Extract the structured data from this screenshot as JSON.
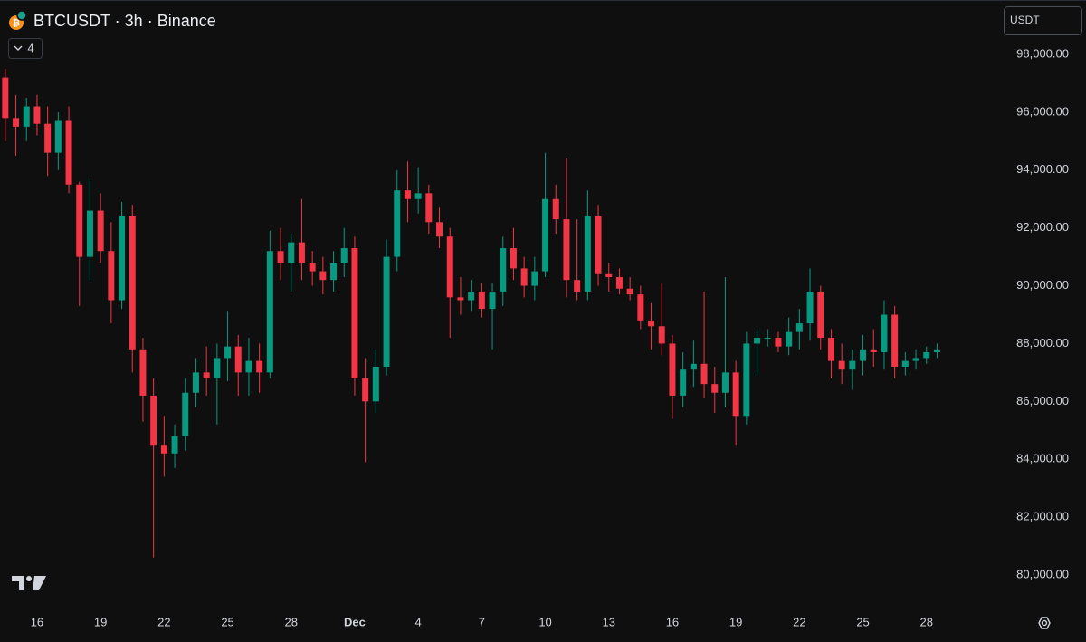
{
  "chart_data": {
    "type": "candlestick",
    "title": "BTCUSDT · 3h · Binance",
    "indicator_count": 4,
    "currency": "USDT",
    "up_color": "#089981",
    "down_color": "#f23645",
    "categories": [
      null,
      null,
      null,
      "16",
      null,
      null,
      null,
      null,
      null,
      "19",
      null,
      null,
      null,
      null,
      null,
      "22",
      null,
      null,
      null,
      null,
      null,
      "25",
      null,
      null,
      null,
      null,
      null,
      "28",
      null,
      null,
      null,
      null,
      null,
      "Dec",
      null,
      null,
      null,
      null,
      null,
      "4",
      null,
      null,
      null,
      null,
      null,
      "7",
      null,
      null,
      null,
      null,
      null,
      "10",
      null,
      null,
      null,
      null,
      null,
      "13",
      null,
      null,
      null,
      null,
      null,
      "16",
      null,
      null,
      null,
      null,
      null,
      "19",
      null,
      null,
      null,
      null,
      null,
      "22",
      null,
      null,
      null,
      null,
      null,
      "25",
      null,
      null,
      null,
      null,
      null,
      "28",
      null
    ],
    "open": [
      97200,
      95800,
      95500,
      96200,
      95600,
      94600,
      95700,
      93500,
      91000,
      92600,
      91200,
      89500,
      92400,
      87800,
      86200,
      84500,
      84200,
      84800,
      86300,
      87000,
      86800,
      87500,
      87900,
      87000,
      87400,
      87000,
      91200,
      90800,
      91500,
      90800,
      90500,
      90200,
      90800,
      91300,
      86800,
      86000,
      87200,
      91000,
      93300,
      93000,
      93200,
      92200,
      91700,
      89600,
      89500,
      89800,
      89200,
      89800,
      91300,
      90600,
      90000,
      90500,
      93000,
      92300,
      90200,
      89800,
      92400,
      90400,
      90300,
      89900,
      89700,
      88800,
      88600,
      88000,
      86200,
      87100,
      87300,
      86600,
      86300,
      87000,
      85500,
      88000,
      88200,
      88200,
      87900,
      88400,
      88700,
      89800,
      88200,
      87400,
      87100,
      87400,
      87800,
      87700,
      89000,
      87200,
      87400,
      87500,
      87700
    ],
    "high": [
      97500,
      96600,
      96500,
      96600,
      96200,
      96000,
      96200,
      93600,
      93700,
      93200,
      92200,
      92900,
      92800,
      88200,
      86800,
      85500,
      85200,
      86800,
      87500,
      87900,
      88000,
      89100,
      88300,
      88200,
      88000,
      91900,
      92000,
      91800,
      93000,
      91200,
      91000,
      91200,
      92000,
      91700,
      87500,
      87800,
      91600,
      94000,
      94300,
      94100,
      93500,
      92700,
      92000,
      90300,
      90200,
      90100,
      90100,
      91700,
      92000,
      91000,
      91000,
      94600,
      93500,
      94400,
      92300,
      93300,
      92800,
      90800,
      90600,
      90300,
      90000,
      89400,
      90100,
      88300,
      87700,
      88100,
      89800,
      87200,
      90300,
      87400,
      88400,
      88500,
      88500,
      88400,
      88900,
      89200,
      90600,
      90000,
      88500,
      88000,
      87800,
      88300,
      88500,
      89500,
      89300,
      87700,
      87800,
      87900,
      88000
    ],
    "low": [
      95000,
      94500,
      95000,
      95200,
      93800,
      94000,
      93200,
      89300,
      90200,
      90800,
      88700,
      89200,
      87000,
      85300,
      80600,
      83400,
      83700,
      84300,
      85800,
      86200,
      85200,
      86700,
      86200,
      86200,
      86300,
      86800,
      90200,
      89800,
      90200,
      90000,
      89700,
      89800,
      90300,
      86200,
      83900,
      85600,
      86900,
      90500,
      92200,
      92500,
      91800,
      91300,
      88200,
      89000,
      89100,
      88900,
      87800,
      89300,
      90200,
      89600,
      89500,
      90300,
      91800,
      89600,
      89500,
      89500,
      90000,
      89800,
      89700,
      89500,
      88500,
      87800,
      87600,
      85400,
      85800,
      86500,
      86100,
      85600,
      85800,
      84500,
      85200,
      86900,
      87900,
      87700,
      87600,
      87800,
      88100,
      87800,
      86800,
      86600,
      86400,
      86900,
      87200,
      87100,
      86800,
      86900,
      87100,
      87300,
      87500
    ],
    "close": [
      95800,
      95500,
      96200,
      95600,
      94600,
      95700,
      93500,
      91000,
      92600,
      91200,
      89500,
      92400,
      87800,
      86200,
      84500,
      84200,
      84800,
      86300,
      87000,
      86800,
      87500,
      87900,
      87000,
      87400,
      87000,
      91200,
      90800,
      91500,
      90800,
      90500,
      90200,
      90800,
      91300,
      86800,
      86000,
      87200,
      91000,
      93300,
      93000,
      93200,
      92200,
      91700,
      89600,
      89500,
      89800,
      89200,
      89800,
      91300,
      90600,
      90000,
      90500,
      93000,
      92300,
      90200,
      89800,
      92400,
      90400,
      90300,
      89900,
      89700,
      88800,
      88600,
      88000,
      86200,
      87100,
      87300,
      86600,
      86300,
      87000,
      85500,
      88000,
      88200,
      88200,
      87900,
      88400,
      88700,
      89800,
      88200,
      87400,
      87100,
      87400,
      87800,
      87700,
      89000,
      87200,
      87400,
      87500,
      87700,
      87800
    ],
    "ylim": [
      78840,
      99880
    ],
    "yticks": [
      {
        "value": 80000,
        "label": "80,000.00"
      },
      {
        "value": 82000,
        "label": "82,000.00"
      },
      {
        "value": 84000,
        "label": "84,000.00"
      },
      {
        "value": 86000,
        "label": "86,000.00"
      },
      {
        "value": 88000,
        "label": "88,000.00"
      },
      {
        "value": 90000,
        "label": "90,000.00"
      },
      {
        "value": 92000,
        "label": "92,000.00"
      },
      {
        "value": 94000,
        "label": "94,000.00"
      },
      {
        "value": 96000,
        "label": "96,000.00"
      },
      {
        "value": 98000,
        "label": "98,000.00"
      }
    ],
    "grid": false
  }
}
